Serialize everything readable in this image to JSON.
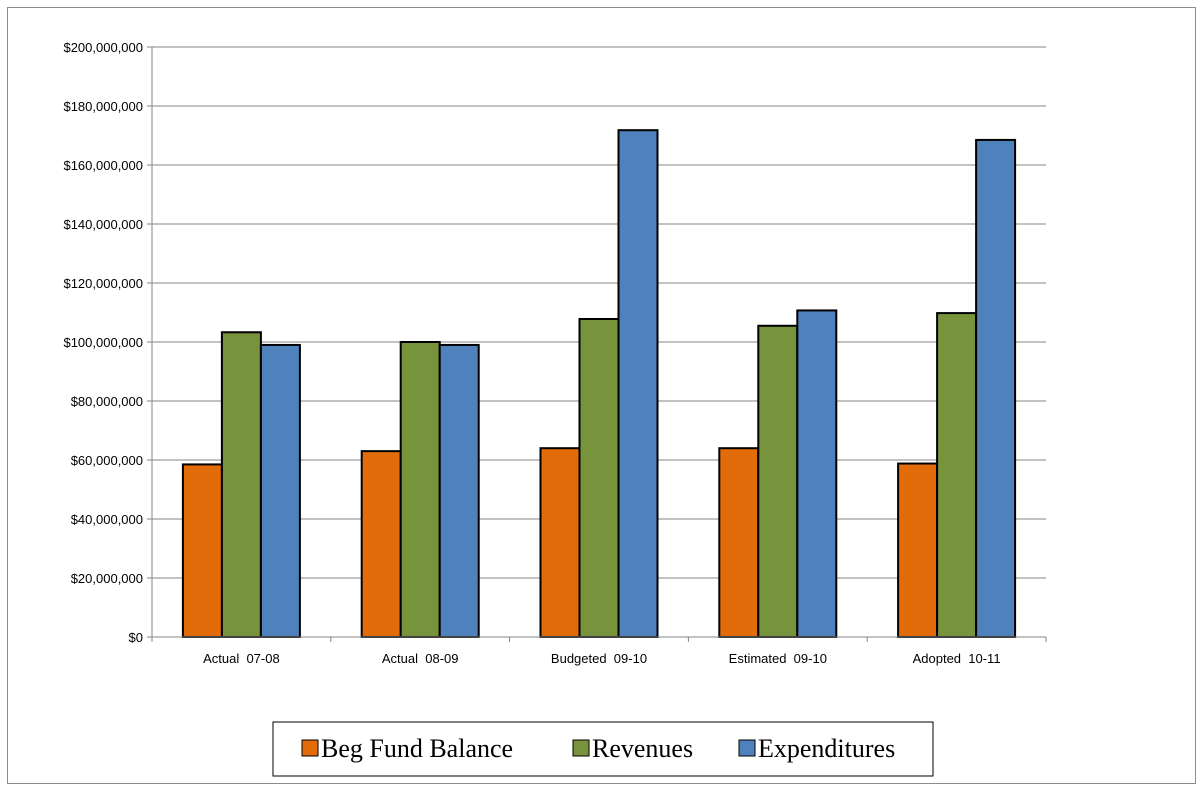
{
  "chart_data": {
    "type": "bar",
    "title": "",
    "xlabel": "",
    "ylabel": "",
    "categories": [
      "Actual  07-08",
      "Actual  08-09",
      "Budgeted  09-10",
      "Estimated  09-10",
      "Adopted  10-11"
    ],
    "series": [
      {
        "name": "Beg Fund Balance",
        "color": "#e36c0a",
        "values": [
          58500000,
          63000000,
          64000000,
          64000000,
          58800000
        ]
      },
      {
        "name": "Revenues",
        "color": "#77933c",
        "values": [
          103300000,
          100000000,
          107800000,
          105500000,
          109800000
        ]
      },
      {
        "name": "Expenditures",
        "color": "#4f81bd",
        "values": [
          99000000,
          99000000,
          171800000,
          110700000,
          168500000
        ]
      }
    ],
    "ylim": [
      0,
      200000000
    ],
    "yticks": [
      "$0",
      "$20,000,000",
      "$40,000,000",
      "$60,000,000",
      "$80,000,000",
      "$100,000,000",
      "$120,000,000",
      "$140,000,000",
      "$160,000,000",
      "$180,000,000",
      "$200,000,000"
    ],
    "grid": true,
    "legend_position": "bottom",
    "bar_outline_color": "#000000",
    "gridline_color": "#868686"
  }
}
